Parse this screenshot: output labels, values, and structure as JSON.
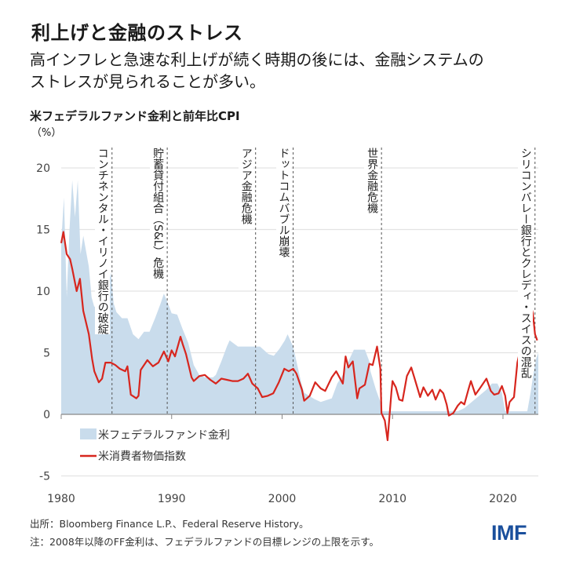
{
  "header": {
    "title": "利上げと金融のストレス",
    "subtitle_line1": "高インフレと急速な利上げが続く時期の後には、金融システムの",
    "subtitle_line2": "ストレスが見られることが多い。"
  },
  "footer": {
    "source": "出所：Bloomberg Finance L.P.、Federal Reserve History。",
    "note": "注：2008年以降のFF金利は、フェデラルファンドの目標レンジの上限を示す。",
    "logo": "IMF"
  },
  "colors": {
    "ff_area": "#c9dcec",
    "cpi_line": "#d7261e",
    "grid": "#e3e3e3",
    "logo": "#1a4f9c"
  },
  "chart_data": {
    "type": "area+line",
    "title": "米フェデラルファンド金利と前年比CPI",
    "ylabel": "（%）",
    "xlim": [
      1980,
      2023.2
    ],
    "ylim": [
      -5,
      20
    ],
    "yticks": [
      20,
      15,
      10,
      5,
      0,
      -5
    ],
    "xticks": [
      1980,
      1990,
      2000,
      2010,
      2020
    ],
    "grid": true,
    "legend_placement": "bottom-left",
    "legend": [
      "米フェデラルファンド金利",
      "米消費者物価指数"
    ],
    "series": [
      {
        "name": "米フェデラルファンド金利",
        "kind": "area",
        "x": [
          1980.0,
          1980.25,
          1980.5,
          1980.75,
          1981.0,
          1981.25,
          1981.5,
          1981.75,
          1982.0,
          1982.5,
          1982.75,
          1983.0,
          1983.5,
          1984.0,
          1984.5,
          1984.75,
          1985.0,
          1985.5,
          1986.0,
          1986.5,
          1987.0,
          1987.5,
          1988.0,
          1988.5,
          1989.0,
          1989.3,
          1989.75,
          1990.0,
          1990.5,
          1991.0,
          1991.5,
          1992.0,
          1992.5,
          1993.0,
          1993.75,
          1994.0,
          1994.5,
          1995.0,
          1995.25,
          1996.0,
          1997.0,
          1998.0,
          1998.75,
          1999.25,
          1999.75,
          2000.25,
          2000.5,
          2001.0,
          2001.25,
          2001.75,
          2002.0,
          2002.9,
          2003.5,
          2004.5,
          2005.0,
          2005.5,
          2006.0,
          2006.5,
          2007.5,
          2007.9,
          2008.0,
          2008.5,
          2008.9,
          2009.0,
          2015.9,
          2016.5,
          2017.5,
          2018.5,
          2019.0,
          2019.5,
          2019.9,
          2020.2,
          2022.2,
          2022.5,
          2022.75,
          2023.0,
          2023.2
        ],
        "y": [
          14,
          17.6,
          9.5,
          15,
          19,
          16,
          19,
          13,
          14.5,
          12,
          9.5,
          8.7,
          9.4,
          9.6,
          11.5,
          9,
          8.3,
          7.8,
          7.8,
          6.5,
          6.1,
          6.7,
          6.7,
          7.8,
          9,
          9.8,
          8.8,
          8.2,
          8.1,
          6.9,
          5.8,
          4.0,
          3.2,
          3.0,
          3.0,
          3.2,
          4.3,
          5.5,
          6.0,
          5.5,
          5.5,
          5.5,
          4.9,
          4.75,
          5.3,
          6.0,
          6.5,
          5.5,
          4.5,
          2.5,
          1.75,
          1.25,
          1.0,
          1.3,
          2.5,
          3.2,
          4.3,
          5.25,
          5.25,
          4.3,
          3.5,
          2.0,
          1.0,
          0.25,
          0.25,
          0.5,
          1.25,
          2.0,
          2.5,
          2.5,
          1.75,
          0.25,
          0.25,
          1.75,
          3.25,
          4.5,
          5.0
        ]
      },
      {
        "name": "米消費者物価指数",
        "kind": "line",
        "x": [
          1980.0,
          1980.2,
          1980.5,
          1980.8,
          1981.0,
          1981.4,
          1981.7,
          1982.0,
          1982.5,
          1982.8,
          1983.0,
          1983.4,
          1983.7,
          1984.0,
          1984.5,
          1984.9,
          1985.3,
          1985.8,
          1986.0,
          1986.3,
          1986.8,
          1987.0,
          1987.2,
          1987.8,
          1988.3,
          1988.8,
          1989.3,
          1989.7,
          1990.0,
          1990.3,
          1990.8,
          1991.0,
          1991.3,
          1991.8,
          1992.0,
          1992.5,
          1993.0,
          1993.5,
          1994.0,
          1994.5,
          1995.0,
          1995.5,
          1996.0,
          1996.5,
          1996.9,
          1997.3,
          1997.8,
          1998.2,
          1998.7,
          1999.2,
          1999.7,
          2000.2,
          2000.6,
          2001.0,
          2001.3,
          2001.8,
          2002.0,
          2002.5,
          2003.0,
          2003.5,
          2003.9,
          2004.5,
          2004.9,
          2005.5,
          2005.75,
          2006.0,
          2006.4,
          2006.8,
          2007.0,
          2007.5,
          2007.9,
          2008.2,
          2008.6,
          2008.9,
          2009.0,
          2009.3,
          2009.55,
          2009.9,
          2010.0,
          2010.3,
          2010.6,
          2010.9,
          2011.3,
          2011.7,
          2012.0,
          2012.5,
          2012.8,
          2013.2,
          2013.6,
          2013.9,
          2014.3,
          2014.6,
          2014.9,
          2015.1,
          2015.5,
          2015.9,
          2016.2,
          2016.5,
          2016.9,
          2017.1,
          2017.5,
          2017.9,
          2018.5,
          2018.9,
          2019.2,
          2019.6,
          2019.9,
          2020.2,
          2020.4,
          2020.6,
          2021.0,
          2021.3,
          2021.6,
          2021.9,
          2022.2,
          2022.45,
          2022.7,
          2022.9,
          2023.1
        ],
        "y": [
          13.9,
          14.8,
          13,
          12.6,
          11.8,
          10,
          11,
          8.4,
          6.5,
          4.5,
          3.5,
          2.6,
          2.9,
          4.2,
          4.2,
          4.0,
          3.7,
          3.5,
          3.9,
          1.6,
          1.3,
          1.5,
          3.6,
          4.4,
          3.9,
          4.2,
          5.1,
          4.3,
          5.2,
          4.7,
          6.3,
          5.7,
          4.9,
          3.0,
          2.7,
          3.1,
          3.2,
          2.8,
          2.5,
          2.9,
          2.8,
          2.7,
          2.7,
          2.9,
          3.3,
          2.5,
          2.1,
          1.4,
          1.5,
          1.7,
          2.6,
          3.7,
          3.5,
          3.7,
          3.3,
          2.0,
          1.1,
          1.5,
          2.6,
          2.1,
          1.9,
          3.0,
          3.5,
          2.5,
          4.7,
          3.8,
          4.3,
          1.3,
          2.1,
          2.4,
          4.1,
          4.0,
          5.5,
          3.7,
          0.1,
          -0.5,
          -2.1,
          1.8,
          2.7,
          2.2,
          1.2,
          1.1,
          3.1,
          3.8,
          2.9,
          1.4,
          2.2,
          1.5,
          2.0,
          1.2,
          2.0,
          1.7,
          0.8,
          -0.1,
          0.1,
          0.7,
          1.0,
          0.8,
          2.1,
          2.7,
          1.6,
          2.1,
          2.9,
          1.9,
          1.6,
          1.7,
          2.3,
          1.5,
          0.1,
          1.0,
          1.4,
          4.2,
          5.4,
          7.0,
          8.3,
          9.1,
          8.2,
          6.5,
          6.0
        ]
      }
    ],
    "annotations": [
      {
        "x": 1984.6,
        "label": "コンチネンタル・イリノイ銀行の破綻"
      },
      {
        "x": 1989.6,
        "label": "貯蓄貸付組合（S&L）危機"
      },
      {
        "x": 1997.6,
        "label": "アジア金融危機"
      },
      {
        "x": 2001.0,
        "label": "ドットコムバブル崩壊"
      },
      {
        "x": 2009.0,
        "label": "世界金融危機"
      },
      {
        "x": 2022.9,
        "label": "シリコンバレー銀行とクレディ・スイスの混乱"
      }
    ]
  }
}
